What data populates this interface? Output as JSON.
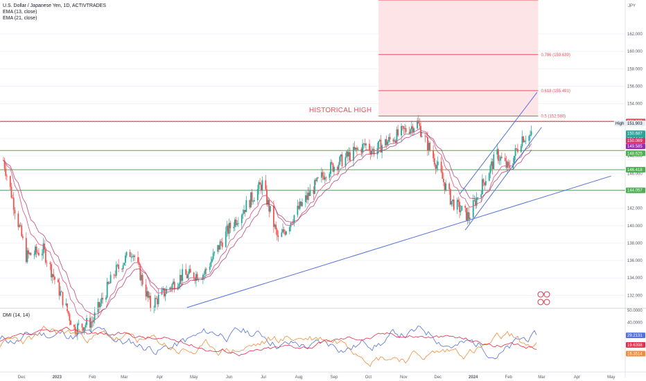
{
  "header": {
    "symbol_line": "U.S. Dollar / Japanese Yen, 1D, ACTIVTRADES",
    "ema1": "EMA (13, close)",
    "ema2": "EMA (21, close)",
    "currency": "JPY"
  },
  "annotations": {
    "historical_high": "HISTORICAL HIGH",
    "fib_05": "0.5 (152.580)",
    "fib_0618": "0.618 (155.491)",
    "fib_0786": "0.786 (159.639)",
    "high_label": "High"
  },
  "indicator": {
    "title": "DMI (14, 14)"
  },
  "colors": {
    "up": "#26a69a",
    "down": "#ef5350",
    "ema": "#e06088",
    "trend": "#5470e0",
    "fib_zone": "#fde4e6",
    "fib_line": "#e8505b",
    "level": "#5aa05a",
    "dmi_plus": "#5470e0",
    "dmi_minus": "#f28c38",
    "adx": "#e0304a"
  },
  "chart_data": {
    "type": "candlestick",
    "title": "U.S. Dollar / Japanese Yen, 1D, ACTIVTRADES",
    "ylim": [
      130.6,
      165.9
    ],
    "y_ticks": [
      132,
      134,
      136,
      138,
      140,
      142,
      144,
      146,
      148,
      150,
      152,
      154,
      156,
      158,
      160,
      162
    ],
    "y_tick_labels": [
      "132.000",
      "134.000",
      "136.000",
      "138.000",
      "140.000",
      "142.000",
      "144.000",
      "146.000",
      "148.000",
      "150.000",
      "152.000",
      "154.000",
      "156.000",
      "158.000",
      "160.000",
      "162.000"
    ],
    "x_tick_labels": [
      "Dec",
      "2023",
      "Feb",
      "Mar",
      "Apr",
      "May",
      "Jun",
      "Jul",
      "Aug",
      "Sep",
      "Oct",
      "Nov",
      "Dec",
      "2024",
      "Feb",
      "Mar",
      "Apr",
      "May"
    ],
    "close_path": [
      {
        "date": "2022-11-15",
        "close": 147.5
      },
      {
        "date": "2022-12-05",
        "close": 136.5
      },
      {
        "date": "2022-12-20",
        "close": 137.2
      },
      {
        "date": "2023-01-16",
        "close": 128.2
      },
      {
        "date": "2023-02-01",
        "close": 129.0
      },
      {
        "date": "2023-02-20",
        "close": 134.5
      },
      {
        "date": "2023-03-08",
        "close": 137.2
      },
      {
        "date": "2023-03-24",
        "close": 130.8
      },
      {
        "date": "2023-04-20",
        "close": 134.2
      },
      {
        "date": "2023-05-10",
        "close": 134.5
      },
      {
        "date": "2023-05-31",
        "close": 139.5
      },
      {
        "date": "2023-06-30",
        "close": 144.8
      },
      {
        "date": "2023-07-14",
        "close": 138.3
      },
      {
        "date": "2023-07-28",
        "close": 141.2
      },
      {
        "date": "2023-08-25",
        "close": 146.3
      },
      {
        "date": "2023-09-29",
        "close": 149.3
      },
      {
        "date": "2023-10-05",
        "close": 148.6
      },
      {
        "date": "2023-11-13",
        "close": 151.8
      },
      {
        "date": "2023-11-29",
        "close": 147.3
      },
      {
        "date": "2023-12-13",
        "close": 142.8
      },
      {
        "date": "2023-12-28",
        "close": 141.0
      },
      {
        "date": "2024-01-10",
        "close": 145.0
      },
      {
        "date": "2024-01-22",
        "close": 148.2
      },
      {
        "date": "2024-02-01",
        "close": 146.5
      },
      {
        "date": "2024-02-13",
        "close": 150.2
      },
      {
        "date": "2024-02-21",
        "close": 150.3
      }
    ],
    "fib_levels": [
      {
        "label": "0.5 (152.580)",
        "value": 152.58
      },
      {
        "label": "0.618 (155.491)",
        "value": 155.491
      },
      {
        "label": "0.786 (159.639)",
        "value": 159.639
      },
      {
        "label": "",
        "value": 165.9
      }
    ],
    "horizontal_levels": [
      {
        "name": "historical_high",
        "value": 151.961,
        "color": "#e8505b"
      },
      {
        "name": "level_148625",
        "value": 148.625,
        "color": "#5aa05a"
      },
      {
        "name": "level_146418",
        "value": 146.418,
        "color": "#5aa05a"
      },
      {
        "name": "level_144057",
        "value": 144.057,
        "color": "#5aa05a"
      }
    ],
    "trendlines": [
      {
        "name": "long-support",
        "from": {
          "date": "2023-04-25",
          "price": 130.6
        },
        "to": {
          "date": "2024-05-01",
          "price": 145.7
        }
      },
      {
        "name": "channel-upper",
        "from": {
          "date": "2023-12-20",
          "price": 143.6
        },
        "to": {
          "date": "2024-02-26",
          "price": 155.3
        }
      },
      {
        "name": "channel-lower",
        "from": {
          "date": "2023-12-25",
          "price": 139.5
        },
        "to": {
          "date": "2024-03-01",
          "price": 151.3
        }
      }
    ],
    "price_labels": [
      {
        "text": "151.961",
        "bg": "#e8505b"
      },
      {
        "text": "151.903",
        "bg": "#e6ebf5",
        "fg": "#131722",
        "prefix": "High"
      },
      {
        "text": "150.687",
        "bg": "#26a69a",
        "sub": "07:14:11"
      },
      {
        "text": "150.069",
        "bg": "#e0306a"
      },
      {
        "text": "149.585",
        "bg": "#9c27b0"
      },
      {
        "text": "148.625",
        "bg": "#4caf50"
      },
      {
        "text": "146.418",
        "bg": "#4caf50"
      },
      {
        "text": "144.057",
        "bg": "#4caf50"
      }
    ],
    "dmi": {
      "title": "DMI (14, 14)",
      "ylim": [
        0,
        50
      ],
      "ticks": [
        "50.0000",
        "40.0000"
      ],
      "values": {
        "di_plus": 29.2131,
        "adx": 19.6398,
        "di_minus": 16.3514
      },
      "value_labels": [
        "29.2131",
        "19.6398",
        "16.3514"
      ]
    }
  }
}
